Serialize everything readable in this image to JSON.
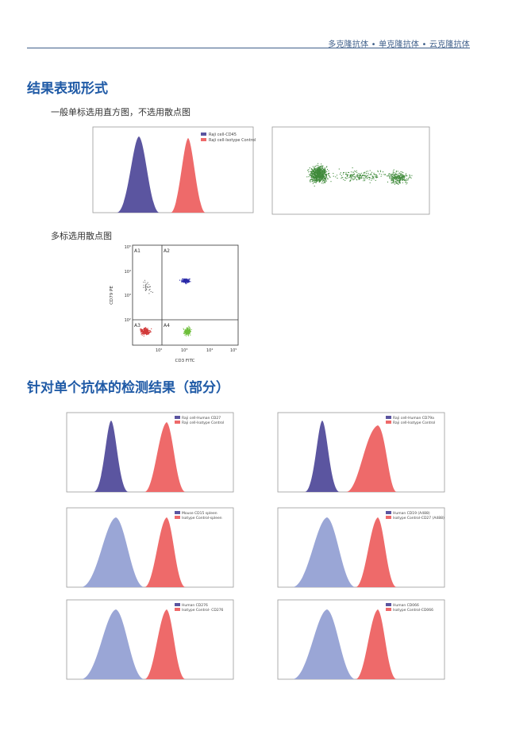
{
  "header": {
    "tagline": "多克隆抗体 • 单克隆抗体 • 云克隆抗体"
  },
  "section1": {
    "title": "结果表现形式",
    "single_label": "一般单标选用直方图，不选用散点图",
    "multi_label": "多标选用散点图"
  },
  "hist_top": {
    "legend": [
      "Raji cell-CD45",
      "Raji cell-Isotype Control"
    ]
  },
  "quad": {
    "quadrants": [
      "A1",
      "A2",
      "A3",
      "A4"
    ],
    "ylabel": "CD79 PE",
    "xlabel": "CD3 FITC",
    "ticks": [
      "10²",
      "10³",
      "10⁴",
      "10⁵"
    ]
  },
  "section2": {
    "title": "针对单个抗体的检测结果（部分）"
  },
  "grid": [
    {
      "legend": [
        "Raji cell-Human CD27",
        "Raji cell-Isotype Control"
      ],
      "mode": "dark"
    },
    {
      "legend": [
        "Raji cell-Human CD79a",
        "Raji cell-Isotype Control"
      ],
      "mode": "dark"
    },
    {
      "legend": [
        "Mouse CD15 spleen",
        "Isotype Control-spleen"
      ],
      "mode": "light"
    },
    {
      "legend": [
        "Human CD19 (A488)",
        "Isotype Control-CD27 (A488)"
      ],
      "mode": "light"
    },
    {
      "legend": [
        "Human CD276",
        "Isotype Control- CD276"
      ],
      "mode": "light"
    },
    {
      "legend": [
        "Human CD066",
        "Isotype Control-CD066"
      ],
      "mode": "light"
    }
  ],
  "colors": {
    "accent": "#1f5aa6",
    "rule": "#3f5f8a",
    "dark_purple": "#5b55a0",
    "light_purple": "#9aa6d6",
    "red": "#ee6a6a",
    "green": "#3f8a3a",
    "blue_dots": "#2a2aa8"
  }
}
